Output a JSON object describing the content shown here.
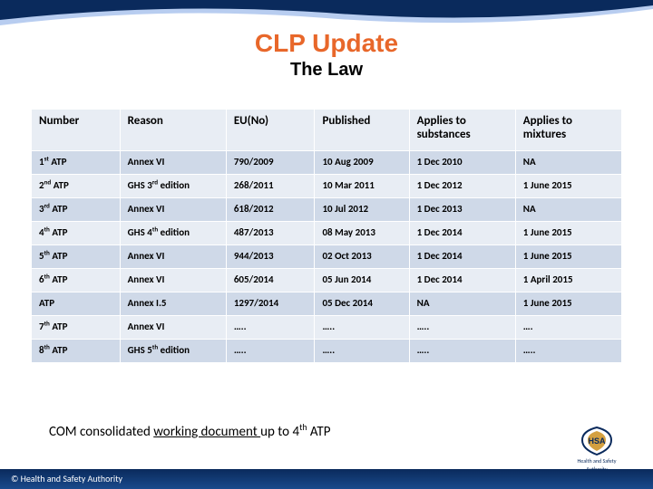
{
  "title": "CLP Update",
  "subtitle": "The Law",
  "table": {
    "headers": [
      "Number",
      "Reason",
      "EU(No)",
      "Published",
      "Applies to substances",
      "Applies to mixtures"
    ],
    "rows": [
      {
        "num": "1",
        "ord": "st",
        "suffix": " ATP",
        "reason": "Annex VI",
        "eu": "790/2009",
        "pub": "10 Aug 2009",
        "sub": "1 Dec 2010",
        "mix": "NA"
      },
      {
        "num": "2",
        "ord": "nd",
        "suffix": " ATP",
        "reason_pre": "GHS 3",
        "reason_ord": "rd",
        "reason_post": " edition",
        "eu": "268/2011",
        "pub": "10 Mar 2011",
        "sub": "1 Dec 2012",
        "mix": "1 June 2015"
      },
      {
        "num": "3",
        "ord": "rd",
        "suffix": " ATP",
        "reason": "Annex VI",
        "eu": "618/2012",
        "pub": "10 Jul 2012",
        "sub": "1 Dec 2013",
        "mix": "NA"
      },
      {
        "num": "4",
        "ord": "th",
        "suffix": " ATP",
        "reason_pre": "GHS 4",
        "reason_ord": "th",
        "reason_post": " edition",
        "eu": "487/2013",
        "pub": "08 May 2013",
        "sub": "1 Dec 2014",
        "mix": "1 June 2015"
      },
      {
        "num": "5",
        "ord": "th",
        "suffix": " ATP",
        "reason": "Annex VI",
        "eu": "944/2013",
        "pub": "02 Oct 2013",
        "sub": "1 Dec 2014",
        "mix": "1 June 2015"
      },
      {
        "num": "6",
        "ord": "th",
        "suffix": " ATP",
        "reason": "Annex VI",
        "eu": "605/2014",
        "pub": "05 Jun 2014",
        "sub": "1 Dec 2014",
        "mix": "1 April 2015"
      },
      {
        "plain": "ATP",
        "reason": "Annex I.5",
        "eu": "1297/2014",
        "pub": "05 Dec 2014",
        "sub": "NA",
        "mix": "1 June 2015"
      },
      {
        "num": "7",
        "ord": "th",
        "suffix": " ATP",
        "reason": "Annex VI",
        "eu": "…..",
        "pub": "…..",
        "sub": "…..",
        "mix": "…."
      },
      {
        "num": "8",
        "ord": "th",
        "suffix": " ATP",
        "reason_pre": "GHS 5",
        "reason_ord": "th",
        "reason_post": " edition",
        "eu": "…..",
        "pub": "…..",
        "sub": "…..",
        "mix": "….."
      }
    ]
  },
  "footnote": {
    "pre": "COM consolidated ",
    "ul": "working document ",
    "mid": "up to 4",
    "ord": "th",
    "post": " ATP"
  },
  "footer": "© Health and Safety Authority",
  "logo": {
    "line1": "Health and Safety",
    "line2": "Authority"
  },
  "colors": {
    "accent": "#e8672a",
    "header_row": "#e8edf4",
    "row_odd": "#cfd9e8",
    "row_even": "#e8edf4",
    "footer_dark": "#0a2a5c",
    "footer_light": "#1a4a8c",
    "curve_light": "#b8cdf0"
  }
}
